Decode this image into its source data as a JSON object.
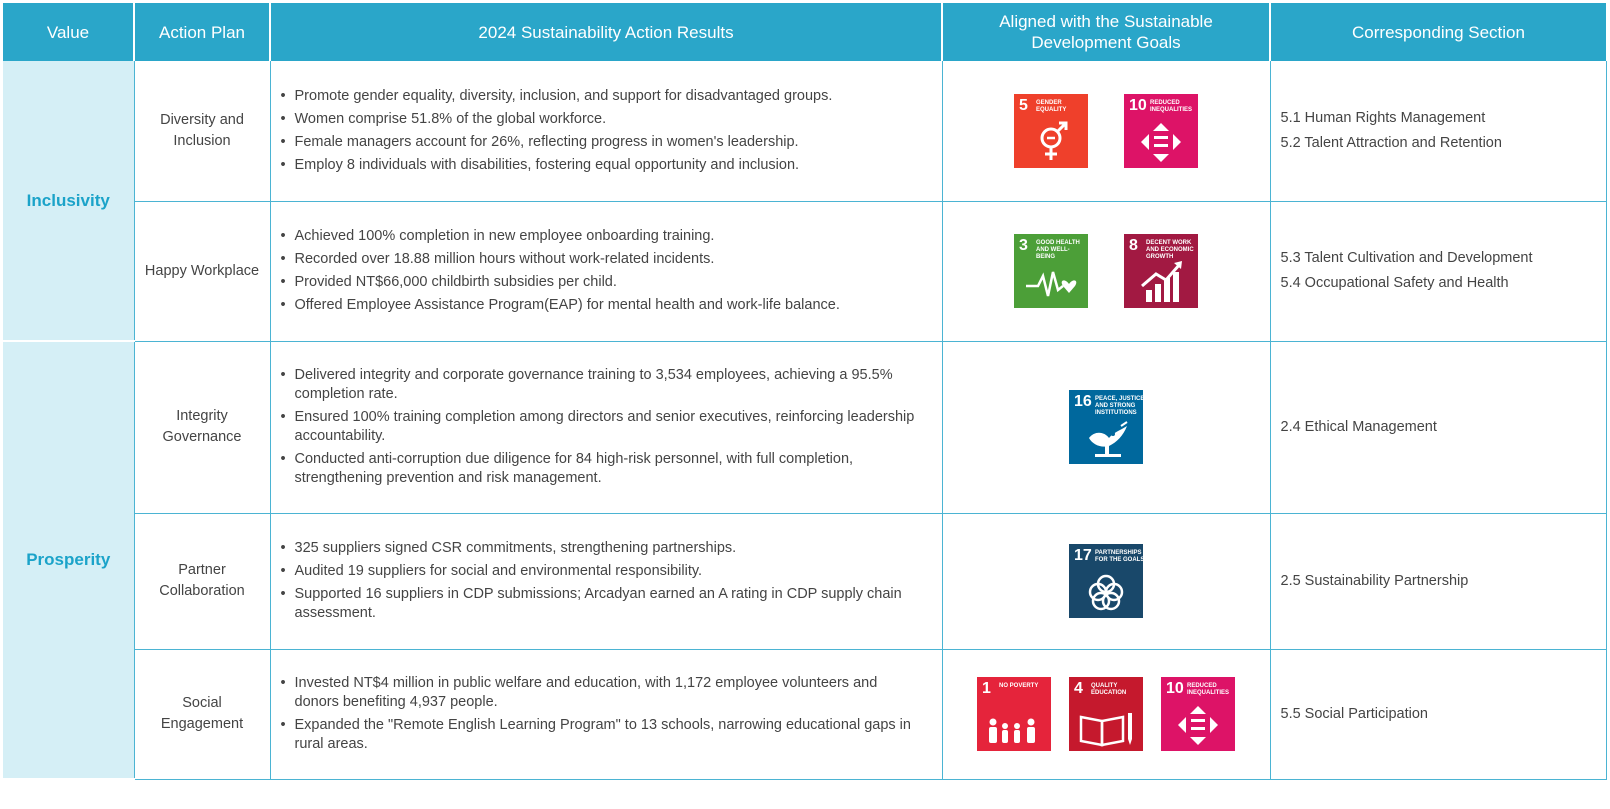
{
  "headers": {
    "value": "Value",
    "plan": "Action Plan",
    "results": "2024 Sustainability Action Results",
    "sdg": "Aligned with the Sustainable Development Goals",
    "section": "Corresponding Section"
  },
  "values": [
    "Inclusivity",
    "Prosperity"
  ],
  "rows": [
    {
      "plan": "Diversity and Inclusion",
      "results": [
        "Promote gender equality, diversity, inclusion, and support for disadvantaged groups.",
        "Women comprise 51.8% of the global workforce.",
        "Female managers account for 26%, reflecting progress in women's leadership.",
        "Employ 8 individuals with disabilities, fostering equal opportunity and inclusion."
      ],
      "sdgs": [
        {
          "num": "5",
          "text": "GENDER EQUALITY",
          "color": "#ef402b",
          "icon": "gender-equality-icon"
        },
        {
          "num": "10",
          "text": "REDUCED INEQUALITIES",
          "color": "#dd1367",
          "icon": "reduced-inequalities-icon"
        }
      ],
      "sections": [
        "5.1 Human Rights Management",
        "5.2 Talent Attraction and Retention"
      ]
    },
    {
      "plan": "Happy Workplace",
      "results": [
        "Achieved 100% completion in new employee onboarding training.",
        "Recorded over 18.88 million hours without work-related incidents.",
        "Provided NT$66,000 childbirth subsidies per child.",
        "Offered Employee Assistance Program(EAP) for mental health and work-life balance."
      ],
      "sdgs": [
        {
          "num": "3",
          "text": "GOOD HEALTH AND WELL-BEING",
          "color": "#4c9f38",
          "icon": "good-health-icon"
        },
        {
          "num": "8",
          "text": "DECENT WORK AND ECONOMIC GROWTH",
          "color": "#a21942",
          "icon": "decent-work-icon"
        }
      ],
      "sections": [
        "5.3 Talent Cultivation and Development",
        "5.4 Occupational Safety and Health"
      ]
    },
    {
      "plan": "Integrity Governance",
      "results": [
        "Delivered integrity and corporate governance training to 3,534 employees, achieving a 95.5% completion rate.",
        "Ensured 100% training completion among directors and senior executives, reinforcing leadership accountability.",
        "Conducted anti-corruption due diligence for 84 high-risk personnel, with full completion, strengthening prevention and risk management."
      ],
      "sdgs": [
        {
          "num": "16",
          "text": "PEACE, JUSTICE AND STRONG INSTITUTIONS",
          "color": "#00689d",
          "icon": "peace-justice-icon"
        }
      ],
      "sections": [
        "2.4 Ethical Management"
      ]
    },
    {
      "plan": "Partner Collaboration",
      "results": [
        "325 suppliers signed CSR commitments, strengthening partnerships.",
        "Audited 19 suppliers for social and environmental responsibility.",
        "Supported 16 suppliers in CDP submissions; Arcadyan earned an A rating in CDP supply chain assessment."
      ],
      "sdgs": [
        {
          "num": "17",
          "text": "PARTNERSHIPS FOR THE GOALS",
          "color": "#19486a",
          "icon": "partnerships-icon"
        }
      ],
      "sections": [
        "2.5 Sustainability Partnership"
      ]
    },
    {
      "plan": "Social Engagement",
      "results": [
        "Invested NT$4 million in public welfare and education, with 1,172 employee volunteers and donors benefiting 4,937 people.",
        "Expanded the \"Remote English Learning Program\" to 13 schools, narrowing educational gaps in rural areas."
      ],
      "sdgs": [
        {
          "num": "1",
          "text": "NO POVERTY",
          "color": "#e5243b",
          "icon": "no-poverty-icon"
        },
        {
          "num": "4",
          "text": "QUALITY EDUCATION",
          "color": "#c5192d",
          "icon": "quality-education-icon"
        },
        {
          "num": "10",
          "text": "REDUCED INEQUALITIES",
          "color": "#dd1367",
          "icon": "reduced-inequalities-icon"
        }
      ],
      "sections": [
        "5.5 Social Participation"
      ]
    }
  ]
}
